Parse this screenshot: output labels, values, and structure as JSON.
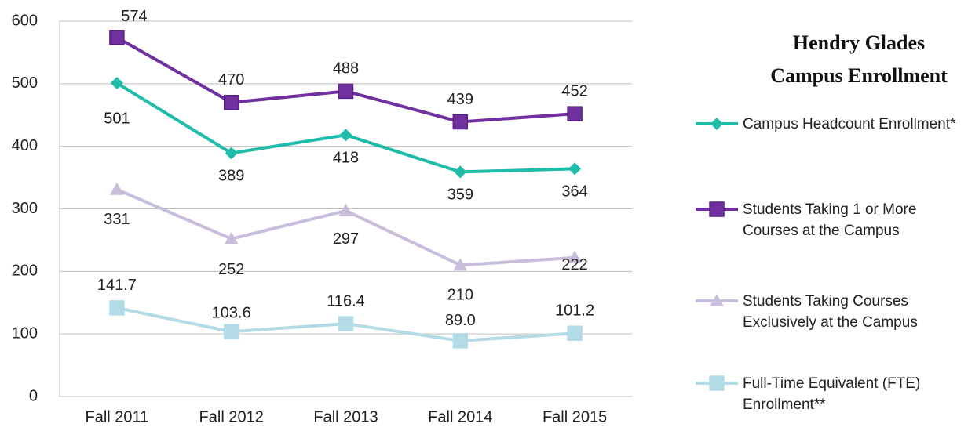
{
  "chart_data": {
    "type": "line",
    "title": "Hendry Glades Campus Enrollment",
    "categories": [
      "Fall 2011",
      "Fall 2012",
      "Fall 2013",
      "Fall 2014",
      "Fall 2015"
    ],
    "series": [
      {
        "name": "Campus Headcount Enrollment*",
        "color": "#1fbcaa",
        "marker": "diamond",
        "values": [
          501,
          389,
          418,
          359,
          364
        ]
      },
      {
        "name": "Students Taking 1 or More Courses at the Campus",
        "color": "#7030a0",
        "marker": "square",
        "values": [
          574,
          470,
          488,
          439,
          452
        ]
      },
      {
        "name": "Students Taking Courses Exclusively at the Campus",
        "color": "#c8bedc",
        "marker": "triangle",
        "values": [
          331,
          252,
          297,
          210,
          222
        ]
      },
      {
        "name": "Full-Time Equivalent (FTE) Enrollment**",
        "color": "#b3dbe6",
        "marker": "square",
        "values": [
          141.7,
          103.6,
          116.4,
          89.0,
          101.2
        ],
        "value_labels": [
          "141.7",
          "103.6",
          "116.4",
          "89.0",
          "101.2"
        ]
      }
    ],
    "ylim": [
      0,
      600
    ],
    "yticks": [
      0,
      100,
      200,
      300,
      400,
      500,
      600
    ],
    "grid": true,
    "legend": "right"
  }
}
